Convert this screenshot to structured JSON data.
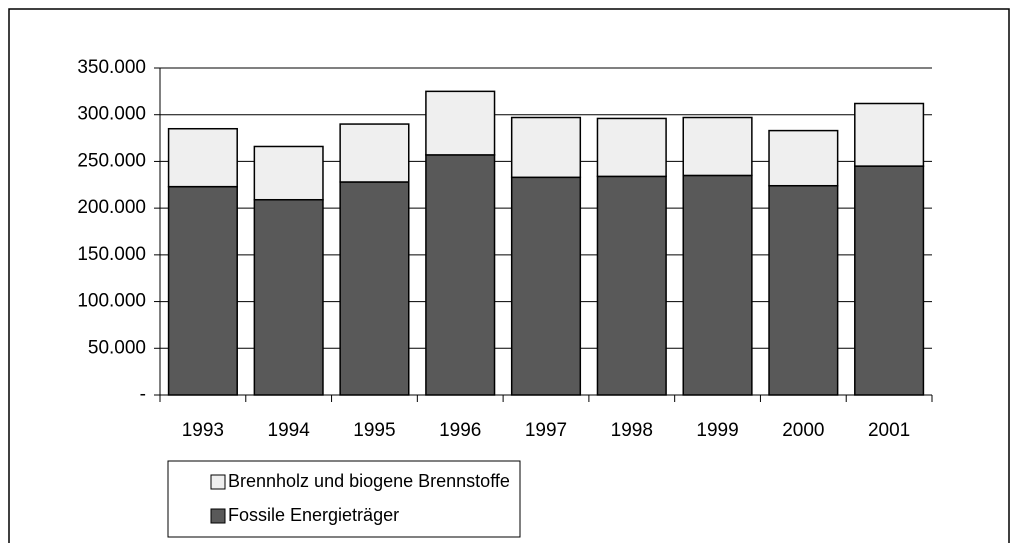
{
  "chart_data": {
    "type": "stacked-bar",
    "categories": [
      "1993",
      "1994",
      "1995",
      "1996",
      "1997",
      "1998",
      "1999",
      "2000",
      "2001"
    ],
    "series": [
      {
        "name": "Fossile Energieträger",
        "color": "#595959",
        "values": [
          223000,
          209000,
          228000,
          257000,
          233000,
          234000,
          235000,
          224000,
          245000
        ]
      },
      {
        "name": "Brennholz und biogene Brennstoffe",
        "color": "#efefef",
        "values": [
          62000,
          57000,
          62000,
          68000,
          64000,
          62000,
          62000,
          59000,
          67000
        ]
      }
    ],
    "ylim": [
      0,
      350000
    ],
    "yticks": [
      {
        "value": 0,
        "label": "-"
      },
      {
        "value": 50000,
        "label": "50.000"
      },
      {
        "value": 100000,
        "label": "100.000"
      },
      {
        "value": 150000,
        "label": "150.000"
      },
      {
        "value": 200000,
        "label": "200.000"
      },
      {
        "value": 250000,
        "label": "250.000"
      },
      {
        "value": 300000,
        "label": "300.000"
      },
      {
        "value": 350000,
        "label": "350.000"
      }
    ],
    "grid": true
  }
}
